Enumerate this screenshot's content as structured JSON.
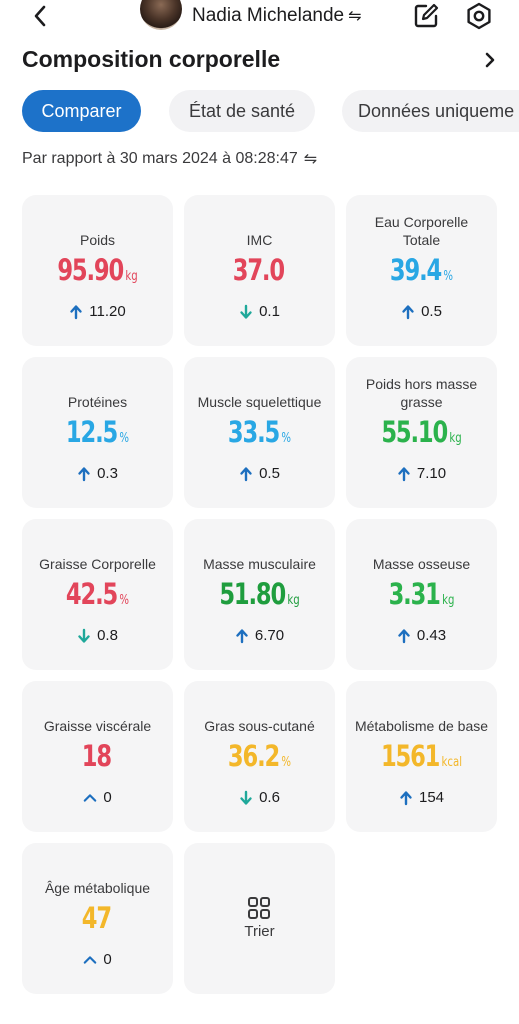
{
  "header": {
    "profile_name": "Nadia Michelande",
    "swap_glyph": "⇋"
  },
  "section": {
    "title": "Composition corporelle"
  },
  "tabs": [
    {
      "label": "Comparer",
      "active": true
    },
    {
      "label": "État de santé",
      "active": false
    },
    {
      "label": "Données uniqueme",
      "active": false
    }
  ],
  "comparison": {
    "text": "Par rapport à 30 mars 2024 à 08:28:47",
    "swap_glyph": "⇋"
  },
  "colors": {
    "accent": "#1d72c9",
    "red": "#e2455a",
    "blue": "#29a7e4",
    "green": "#2bb24c",
    "yellow": "#f3b72a",
    "up_arrow": "#1d6fbf",
    "down_arrow": "#1fa89a"
  },
  "metrics": [
    {
      "label": "Poids",
      "value": "95.90",
      "unit": "kg",
      "color": "red",
      "delta": "11.20",
      "trend": "up"
    },
    {
      "label": "IMC",
      "value": "37.0",
      "unit": "",
      "color": "red",
      "delta": "0.1",
      "trend": "down"
    },
    {
      "label": "Eau Corporelle Totale",
      "value": "39.4",
      "unit": "%",
      "color": "blue",
      "delta": "0.5",
      "trend": "up"
    },
    {
      "label": "Protéines",
      "value": "12.5",
      "unit": "%",
      "color": "blue",
      "delta": "0.3",
      "trend": "up"
    },
    {
      "label": "Muscle squelettique",
      "value": "33.5",
      "unit": "%",
      "color": "blue",
      "delta": "0.5",
      "trend": "up"
    },
    {
      "label": "Poids hors masse grasse",
      "value": "55.10",
      "unit": "kg",
      "color": "green",
      "delta": "7.10",
      "trend": "up"
    },
    {
      "label": "Graisse Corporelle",
      "value": "42.5",
      "unit": "%",
      "color": "red",
      "delta": "0.8",
      "trend": "down"
    },
    {
      "label": "Masse musculaire",
      "value": "51.80",
      "unit": "kg",
      "color": "dgreen",
      "delta": "6.70",
      "trend": "up"
    },
    {
      "label": "Masse osseuse",
      "value": "3.31",
      "unit": "kg",
      "color": "green",
      "delta": "0.43",
      "trend": "up"
    },
    {
      "label": "Graisse viscérale",
      "value": "18",
      "unit": "",
      "color": "red",
      "delta": "0",
      "trend": "flat"
    },
    {
      "label": "Gras sous-cutané",
      "value": "36.2",
      "unit": "%",
      "color": "yellow",
      "delta": "0.6",
      "trend": "down"
    },
    {
      "label": "Métabolisme de base",
      "value": "1561",
      "unit": "kcal",
      "color": "yellow",
      "delta": "154",
      "trend": "up"
    },
    {
      "label": "Âge métabolique",
      "value": "47",
      "unit": "",
      "color": "yellow",
      "delta": "0",
      "trend": "flat"
    }
  ],
  "sort_card": {
    "label": "Trier",
    "icon": "sort-grid-icon"
  }
}
